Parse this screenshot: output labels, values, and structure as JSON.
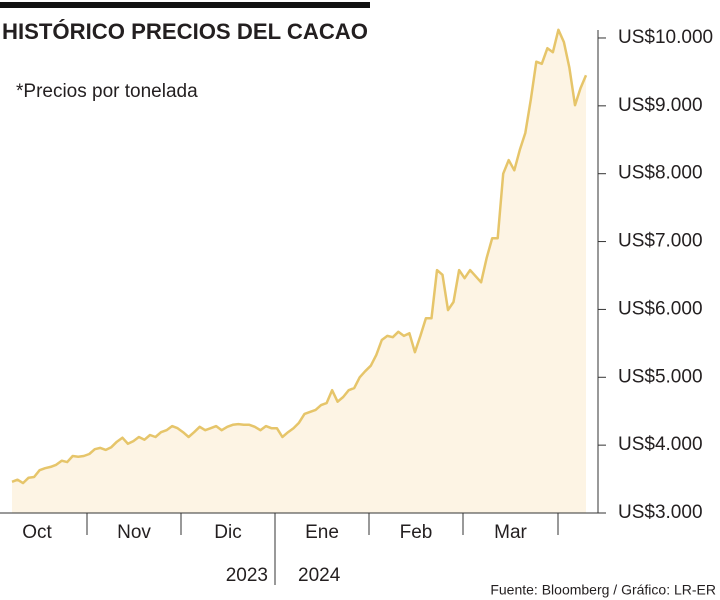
{
  "chart_data": {
    "type": "area",
    "title": "HISTÓRICO PRECIOS DEL CACAO",
    "subtitle": "*Precios por tonelada",
    "source": "Fuente: Bloomberg / Gráfico: LR-ER",
    "months": [
      "Oct",
      "Nov",
      "Dic",
      "Ene",
      "Feb",
      "Mar"
    ],
    "years": [
      "2023",
      "2024"
    ],
    "color": "#e6c56a",
    "fill": "#fdf4e4",
    "values": [
      3460,
      3490,
      3440,
      3520,
      3530,
      3630,
      3660,
      3680,
      3710,
      3770,
      3750,
      3840,
      3830,
      3840,
      3870,
      3940,
      3960,
      3930,
      3970,
      4050,
      4110,
      4020,
      4060,
      4120,
      4080,
      4150,
      4120,
      4190,
      4220,
      4280,
      4250,
      4190,
      4120,
      4190,
      4270,
      4220,
      4250,
      4280,
      4220,
      4270,
      4300,
      4310,
      4300,
      4300,
      4270,
      4220,
      4280,
      4250,
      4250,
      4120,
      4190,
      4250,
      4330,
      4460,
      4490,
      4520,
      4590,
      4620,
      4810,
      4640,
      4710,
      4810,
      4840,
      5000,
      5090,
      5170,
      5330,
      5550,
      5610,
      5590,
      5670,
      5610,
      5650,
      5370,
      5610,
      5870,
      5870,
      6580,
      6510,
      5990,
      6110,
      6580,
      6460,
      6580,
      6490,
      6400,
      6760,
      7050,
      7050,
      8000,
      8200,
      8050,
      8350,
      8600,
      9090,
      9650,
      9620,
      9850,
      9790,
      10120,
      9940,
      9560,
      9010,
      9260,
      9450
    ],
    "ylim": [
      3000,
      10200
    ],
    "yticks": [
      {
        "value": 3000,
        "label": "US$3.000"
      },
      {
        "value": 4000,
        "label": "US$4.000"
      },
      {
        "value": 5000,
        "label": "US$5.000"
      },
      {
        "value": 6000,
        "label": "US$6.000"
      },
      {
        "value": 7000,
        "label": "US$7.000"
      },
      {
        "value": 8000,
        "label": "US$8.000"
      },
      {
        "value": 9000,
        "label": "US$9.000"
      },
      {
        "value": 10000,
        "label": "US$10.000"
      }
    ]
  }
}
